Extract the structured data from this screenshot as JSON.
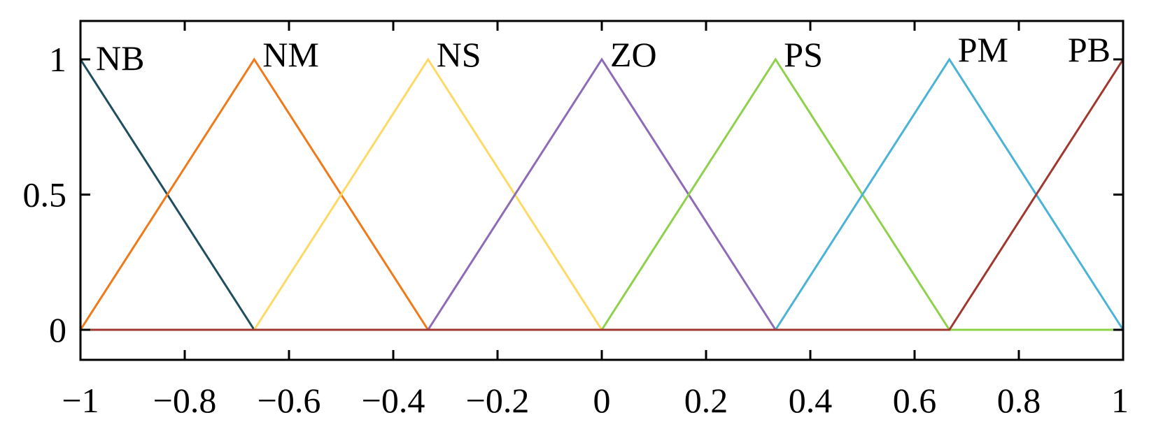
{
  "chart_data": {
    "type": "line",
    "title": "",
    "xlabel": "",
    "ylabel": "",
    "xlim": [
      -1,
      1
    ],
    "ylim": [
      0,
      1
    ],
    "xticks": [
      -1,
      -0.8,
      -0.6,
      -0.4,
      -0.2,
      0,
      0.2,
      0.4,
      0.6,
      0.8,
      1
    ],
    "xtick_labels": [
      "−1",
      "−0.8",
      "−0.6",
      "−0.4",
      "−0.2",
      "0",
      "0.2",
      "0.4",
      "0.6",
      "0.8",
      "1"
    ],
    "yticks": [
      0,
      0.5,
      1
    ],
    "ytick_labels": [
      "0",
      "0.5",
      "1"
    ],
    "grid": false,
    "series": [
      {
        "name": "NB",
        "color": "#1f4e5f",
        "x": [
          -1,
          -0.6667,
          1
        ],
        "y": [
          1,
          0,
          0
        ]
      },
      {
        "name": "NM",
        "color": "#f07a1a",
        "x": [
          -1,
          -0.6667,
          -0.3333,
          1
        ],
        "y": [
          0,
          1,
          0,
          0
        ]
      },
      {
        "name": "NS",
        "color": "#ffd966",
        "x": [
          -1,
          -0.6667,
          -0.3333,
          0,
          1
        ],
        "y": [
          0,
          0,
          1,
          0,
          0
        ]
      },
      {
        "name": "ZO",
        "color": "#8e6bb8",
        "x": [
          -1,
          -0.3333,
          0,
          0.3333,
          1
        ],
        "y": [
          0,
          0,
          1,
          0,
          0
        ]
      },
      {
        "name": "PS",
        "color": "#8ed14b",
        "x": [
          -1,
          0,
          0.3333,
          0.6667,
          1
        ],
        "y": [
          0,
          0,
          1,
          0,
          0
        ]
      },
      {
        "name": "PM",
        "color": "#4bb3d6",
        "x": [
          -1,
          0.3333,
          0.6667,
          1
        ],
        "y": [
          0,
          0,
          1,
          0
        ]
      },
      {
        "name": "PB",
        "color": "#a0382f",
        "x": [
          -1,
          0.6667,
          1
        ],
        "y": [
          0,
          0,
          1
        ]
      }
    ]
  }
}
